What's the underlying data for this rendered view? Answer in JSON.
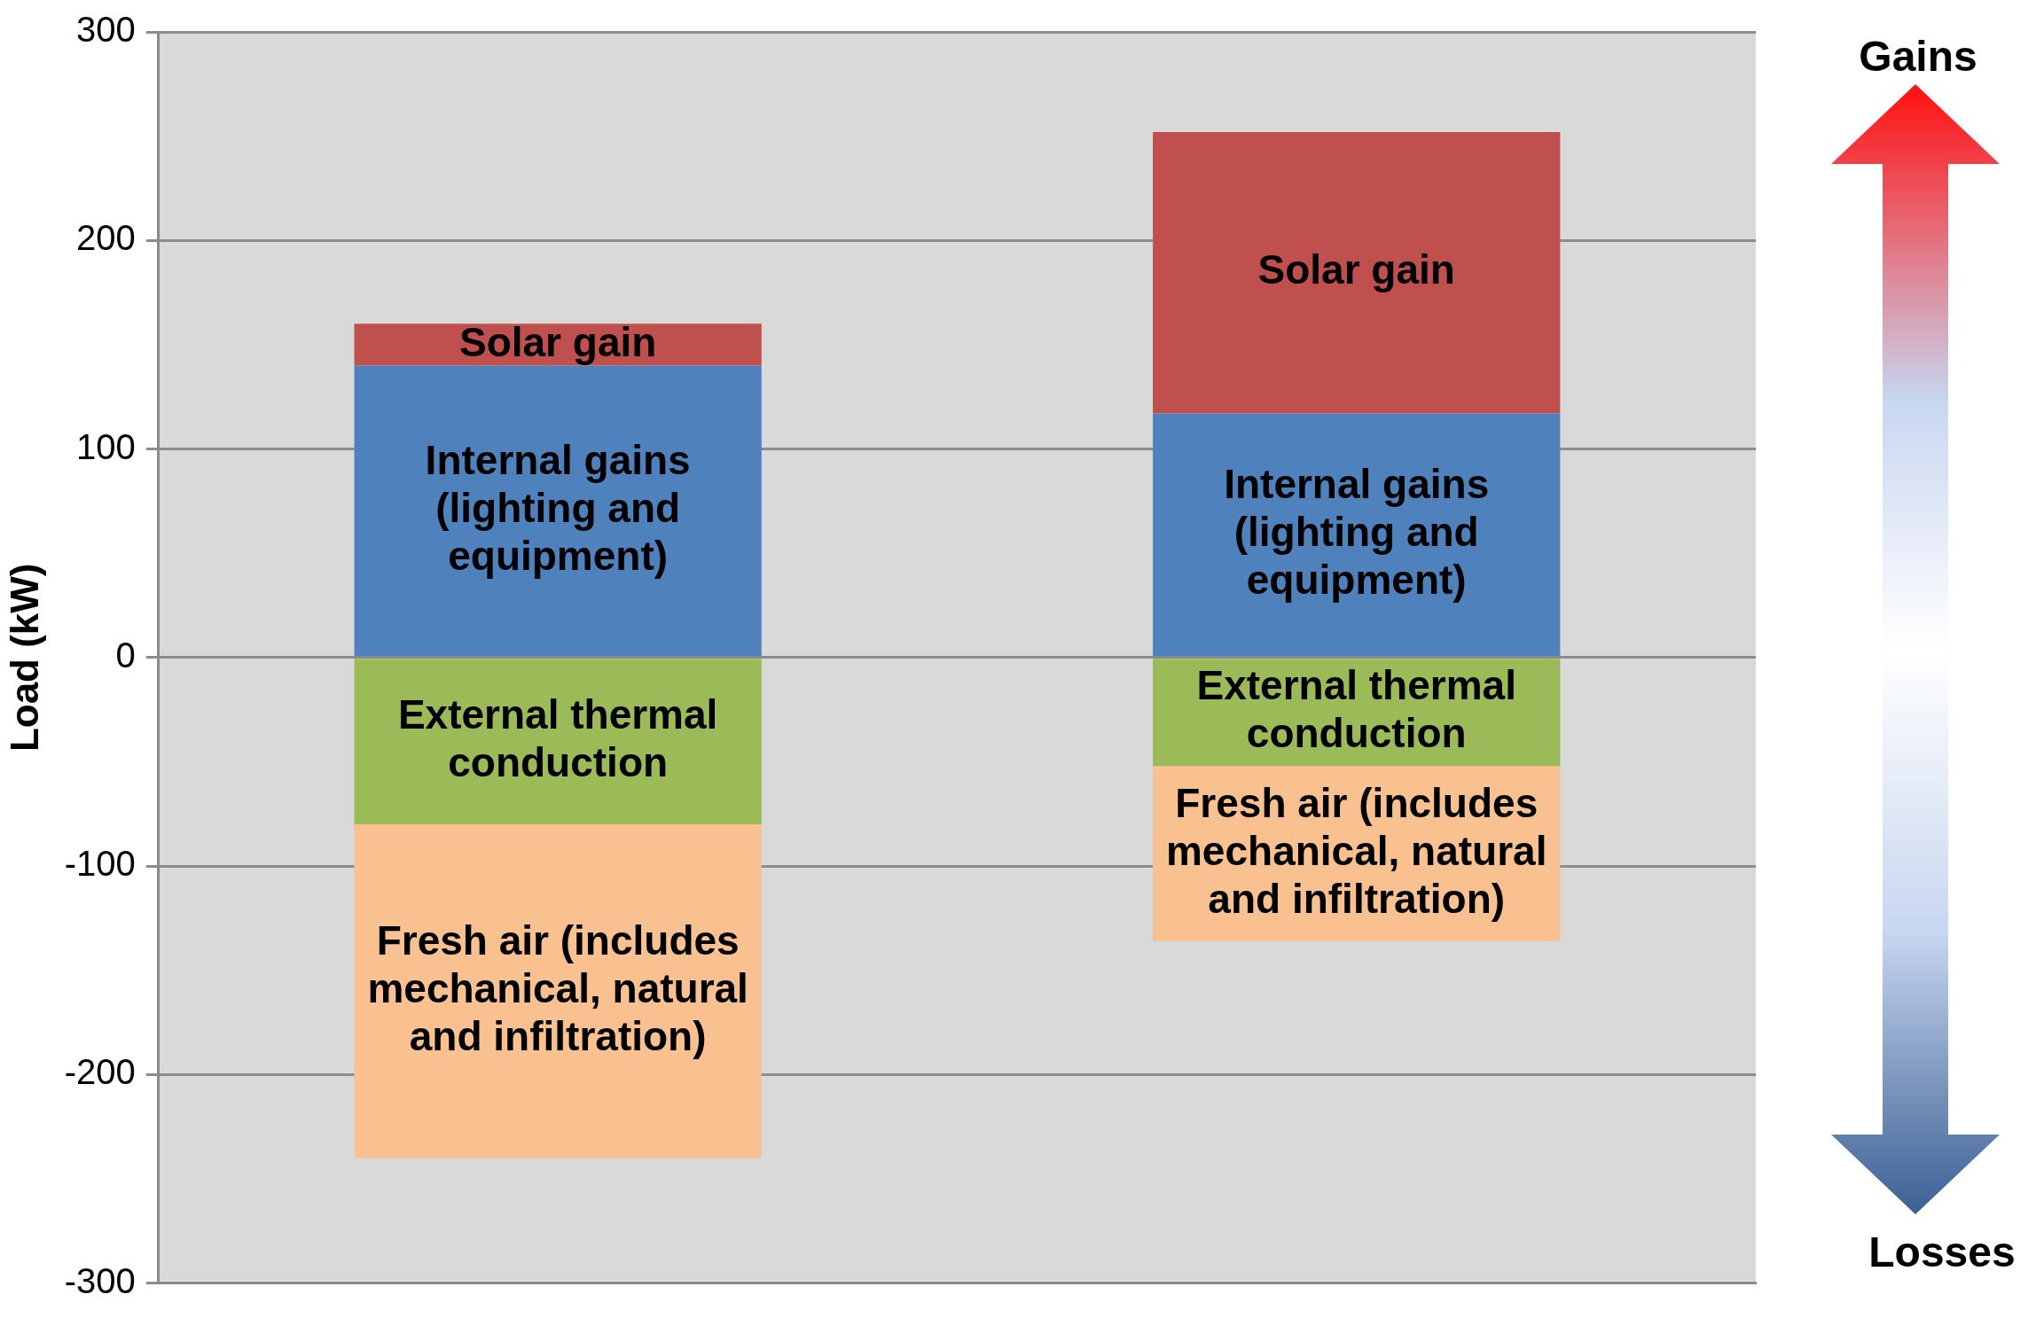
{
  "chart_data": {
    "type": "bar",
    "stacked": true,
    "categories": [
      null,
      null
    ],
    "series": [
      {
        "name": "Internal gains (lighting and equipment)",
        "color": "#4f81bd",
        "values": [
          140,
          117
        ]
      },
      {
        "name": "Solar gain",
        "color": "#c0504d",
        "values": [
          20,
          135
        ]
      },
      {
        "name": "External thermal conduction",
        "color": "#9bbb59",
        "values": [
          -80,
          -52
        ]
      },
      {
        "name": "Fresh air (includes mechanical, natural and infiltration)",
        "color": "#f9c090",
        "values": [
          -160,
          -84
        ]
      }
    ],
    "ylabel": "Load (kW)",
    "ylim": [
      -300,
      300
    ],
    "yticks": [
      -300,
      -200,
      -100,
      0,
      100,
      200,
      300
    ],
    "grid": "y",
    "legend": false,
    "annotations": [
      "Gains",
      "Losses"
    ]
  }
}
